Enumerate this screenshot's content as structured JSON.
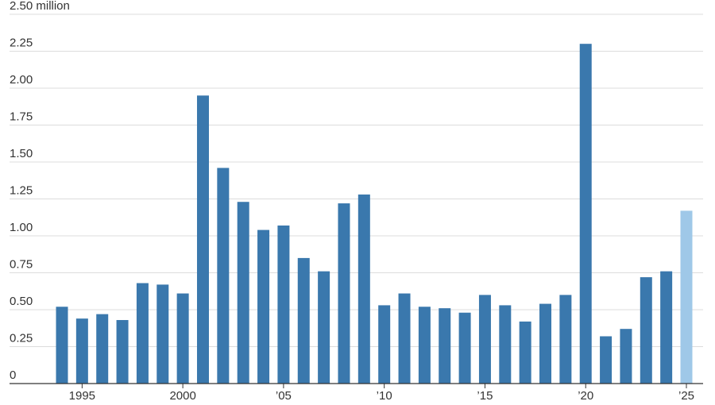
{
  "chart_data": {
    "type": "bar",
    "categories": [
      null,
      "1995",
      null,
      null,
      null,
      null,
      "2000",
      null,
      null,
      null,
      null,
      "’05",
      null,
      null,
      null,
      null,
      "’10",
      null,
      null,
      null,
      null,
      "’15",
      null,
      null,
      null,
      null,
      "’20",
      null,
      null,
      null,
      null,
      "’25"
    ],
    "values": [
      0.52,
      0.44,
      0.47,
      0.43,
      0.68,
      0.67,
      0.61,
      1.95,
      1.46,
      1.23,
      1.04,
      1.07,
      0.85,
      0.76,
      1.22,
      1.28,
      0.53,
      0.61,
      0.52,
      0.51,
      0.48,
      0.6,
      0.53,
      0.42,
      0.54,
      0.6,
      2.3,
      0.32,
      0.37,
      0.72,
      0.76,
      1.17
    ],
    "colors": [
      "#3a78ad",
      "#3a78ad",
      "#3a78ad",
      "#3a78ad",
      "#3a78ad",
      "#3a78ad",
      "#3a78ad",
      "#3a78ad",
      "#3a78ad",
      "#3a78ad",
      "#3a78ad",
      "#3a78ad",
      "#3a78ad",
      "#3a78ad",
      "#3a78ad",
      "#3a78ad",
      "#3a78ad",
      "#3a78ad",
      "#3a78ad",
      "#3a78ad",
      "#3a78ad",
      "#3a78ad",
      "#3a78ad",
      "#3a78ad",
      "#3a78ad",
      "#3a78ad",
      "#3a78ad",
      "#3a78ad",
      "#3a78ad",
      "#3a78ad",
      "#3a78ad",
      "#9fc8e8"
    ],
    "ylim": [
      0,
      2.5
    ],
    "yticks": [
      0,
      0.25,
      {
        "value": 0.5,
        "label": "0.50"
      },
      0.75,
      {
        "value": 1,
        "label": "1.00"
      },
      1.25,
      {
        "value": 1.5,
        "label": "1.50"
      },
      1.75,
      {
        "value": 2,
        "label": "2.00"
      },
      2.25,
      {
        "value": 2.5,
        "label": "2.50 million"
      }
    ],
    "grid": true
  }
}
